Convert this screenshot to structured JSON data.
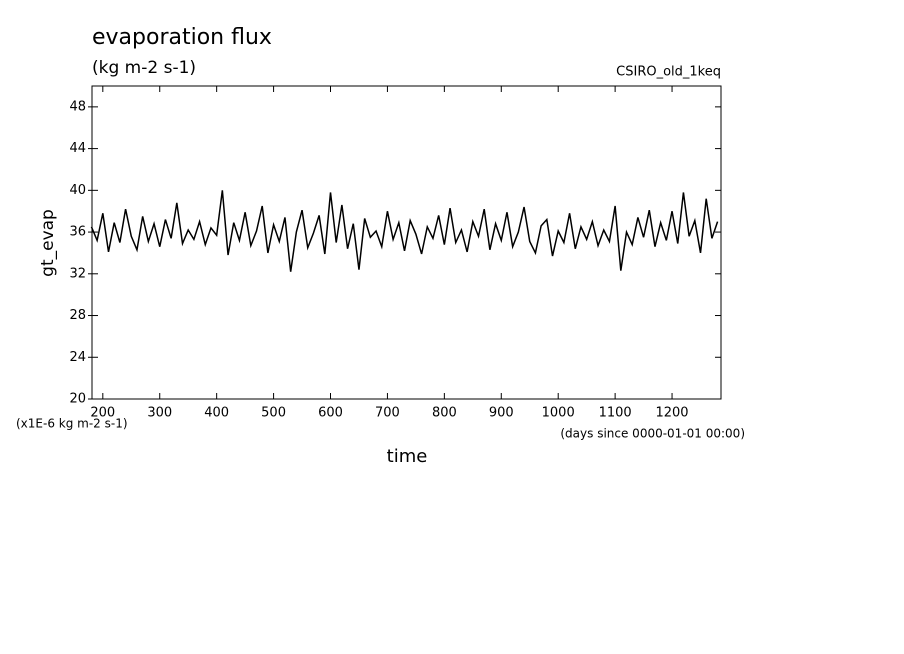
{
  "chart_data": {
    "type": "line",
    "title": "evaporation flux",
    "subtitle": "(kg m-2 s-1)",
    "dataset_label": "CSIRO_old_1keq",
    "y_label": "gt_evap",
    "y_units_note": "(x1E-6 kg m-2 s-1)",
    "x_label": "time",
    "x_units_note": "(days since 0000-01-01 00:00)",
    "x": [
      180,
      190,
      200,
      210,
      220,
      230,
      240,
      250,
      260,
      270,
      280,
      290,
      300,
      310,
      320,
      330,
      340,
      350,
      360,
      370,
      380,
      390,
      400,
      410,
      420,
      430,
      440,
      450,
      460,
      470,
      480,
      490,
      500,
      510,
      520,
      530,
      540,
      550,
      560,
      570,
      580,
      590,
      600,
      610,
      620,
      630,
      640,
      650,
      660,
      670,
      680,
      690,
      700,
      710,
      720,
      730,
      740,
      750,
      760,
      770,
      780,
      790,
      800,
      810,
      820,
      830,
      840,
      850,
      860,
      870,
      880,
      890,
      900,
      910,
      920,
      930,
      940,
      950,
      960,
      970,
      980,
      990,
      1000,
      1010,
      1020,
      1030,
      1040,
      1050,
      1060,
      1070,
      1080,
      1090,
      1100,
      1110,
      1120,
      1130,
      1140,
      1150,
      1160,
      1170,
      1180,
      1190,
      1200,
      1210,
      1220,
      1230,
      1240,
      1250,
      1260,
      1270,
      1280
    ],
    "series": [
      {
        "name": "gt_evap",
        "color": "#000000",
        "values": [
          36.5,
          35.2,
          37.8,
          34.1,
          36.9,
          35.0,
          38.2,
          35.6,
          34.3,
          37.5,
          35.1,
          36.8,
          34.6,
          37.2,
          35.4,
          38.8,
          34.9,
          36.2,
          35.3,
          37.0,
          34.8,
          36.4,
          35.7,
          40.0,
          33.8,
          36.9,
          35.2,
          37.9,
          34.7,
          36.1,
          38.5,
          34.0,
          36.7,
          35.1,
          37.4,
          32.2,
          36.0,
          38.1,
          34.5,
          35.9,
          37.6,
          33.9,
          39.8,
          35.0,
          38.6,
          34.4,
          36.8,
          32.4,
          37.3,
          35.5,
          36.1,
          34.6,
          38.0,
          35.3,
          36.9,
          34.2,
          37.1,
          35.8,
          33.9,
          36.5,
          35.4,
          37.6,
          34.8,
          38.3,
          35.0,
          36.2,
          34.1,
          37.0,
          35.6,
          38.2,
          34.3,
          36.8,
          35.2,
          37.9,
          34.6,
          36.0,
          38.4,
          35.1,
          34.0,
          36.6,
          37.2,
          33.7,
          36.1,
          35.0,
          37.8,
          34.4,
          36.5,
          35.3,
          37.0,
          34.7,
          36.2,
          35.1,
          38.5,
          32.3,
          36.0,
          34.8,
          37.4,
          35.5,
          38.1,
          34.6,
          36.9,
          35.2,
          38.0,
          34.9,
          39.8,
          35.6,
          37.1,
          34.0,
          39.2,
          35.4,
          37.0
        ]
      }
    ],
    "xlim": [
      181,
      1286
    ],
    "xticks": [
      200,
      300,
      400,
      500,
      600,
      700,
      800,
      900,
      1000,
      1100,
      1200
    ],
    "ylim": [
      20,
      50
    ],
    "yticks": [
      20,
      24,
      28,
      32,
      36,
      40,
      44,
      48
    ],
    "grid": false
  }
}
